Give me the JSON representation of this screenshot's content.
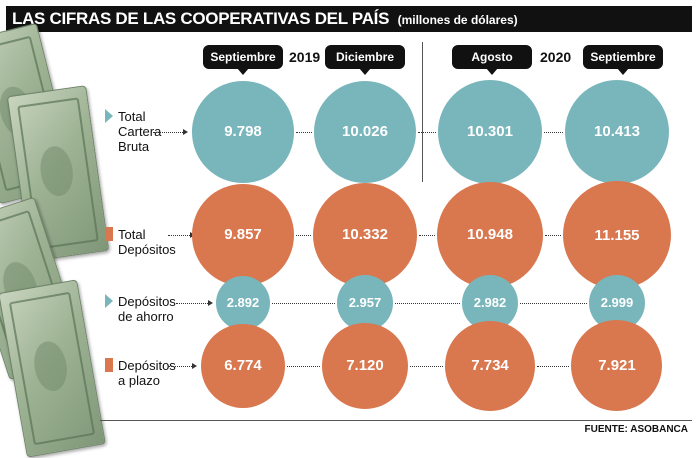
{
  "header": {
    "title": "LAS CIFRAS DE LAS COOPERATIVAS DEL PAÍS",
    "subtitle": "(millones de dólares)"
  },
  "years": [
    "2019",
    "2020"
  ],
  "periods": [
    "Septiembre",
    "Diciembre",
    "Agosto",
    "Septiembre"
  ],
  "colors": {
    "teal": "#79b6bc",
    "orange": "#d9774f",
    "dark": "#111111"
  },
  "icons": [
    "money-bills-icon",
    "triangle-pointer-icon"
  ],
  "chart_data": {
    "type": "bubble",
    "title": "LAS CIFRAS DE LAS COOPERATIVAS DEL PAÍS",
    "subtitle": "(millones de dólares)",
    "unit": "millones de dólares",
    "categories": [
      "Septiembre 2019",
      "Diciembre 2019",
      "Agosto 2020",
      "Septiembre 2020"
    ],
    "series": [
      {
        "name": "Total Cartera Bruta",
        "label_lines": [
          "Total",
          "Cartera",
          "Bruta"
        ],
        "color": "#79b6bc",
        "values": [
          9798,
          10026,
          10301,
          10413
        ],
        "display": [
          "9.798",
          "10.026",
          "10.301",
          "10.413"
        ]
      },
      {
        "name": "Total Depósitos",
        "label_lines": [
          "Total",
          "Depósitos"
        ],
        "color": "#d9774f",
        "values": [
          9857,
          10332,
          10948,
          11155
        ],
        "display": [
          "9.857",
          "10.332",
          "10.948",
          "11.155"
        ]
      },
      {
        "name": "Depósitos de ahorro",
        "label_lines": [
          "Depósitos",
          "de ahorro"
        ],
        "color": "#79b6bc",
        "values": [
          2892,
          2957,
          2982,
          2999
        ],
        "display": [
          "2.892",
          "2.957",
          "2.982",
          "2.999"
        ]
      },
      {
        "name": "Depósitos a plazo",
        "label_lines": [
          "Depósitos",
          "a plazo"
        ],
        "color": "#d9774f",
        "values": [
          6774,
          7120,
          7734,
          7921
        ],
        "display": [
          "6.774",
          "7.120",
          "7.734",
          "7.921"
        ]
      }
    ]
  },
  "footer": {
    "source": "FUENTE: ASOBANCA"
  }
}
